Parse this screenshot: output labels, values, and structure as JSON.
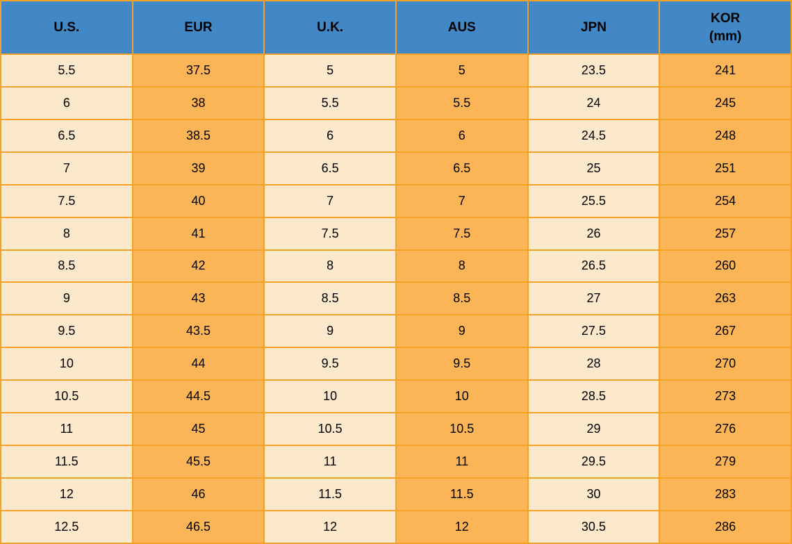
{
  "table": {
    "headers": [
      {
        "label": "U.S."
      },
      {
        "label": "EUR"
      },
      {
        "label": "U.K."
      },
      {
        "label": "AUS"
      },
      {
        "label": "JPN"
      },
      {
        "label": "KOR",
        "sublabel": "(mm)"
      }
    ]
  },
  "colors": {
    "header_bg": "#4288C6",
    "cell_cream": "#FCE8CA",
    "cell_orange": "#FBB557",
    "grid_border": "#F4A226",
    "text": "#000000"
  },
  "chart_data": {
    "type": "table",
    "columns": [
      "U.S.",
      "EUR",
      "U.K.",
      "AUS",
      "JPN",
      "KOR (mm)"
    ],
    "column_styles": [
      "cream",
      "orange",
      "cream",
      "orange",
      "cream",
      "orange"
    ],
    "rows": [
      [
        "5.5",
        "37.5",
        "5",
        "5",
        "23.5",
        "241"
      ],
      [
        "6",
        "38",
        "5.5",
        "5.5",
        "24",
        "245"
      ],
      [
        "6.5",
        "38.5",
        "6",
        "6",
        "24.5",
        "248"
      ],
      [
        "7",
        "39",
        "6.5",
        "6.5",
        "25",
        "251"
      ],
      [
        "7.5",
        "40",
        "7",
        "7",
        "25.5",
        "254"
      ],
      [
        "8",
        "41",
        "7.5",
        "7.5",
        "26",
        "257"
      ],
      [
        "8.5",
        "42",
        "8",
        "8",
        "26.5",
        "260"
      ],
      [
        "9",
        "43",
        "8.5",
        "8.5",
        "27",
        "263"
      ],
      [
        "9.5",
        "43.5",
        "9",
        "9",
        "27.5",
        "267"
      ],
      [
        "10",
        "44",
        "9.5",
        "9.5",
        "28",
        "270"
      ],
      [
        "10.5",
        "44.5",
        "10",
        "10",
        "28.5",
        "273"
      ],
      [
        "11",
        "45",
        "10.5",
        "10.5",
        "29",
        "276"
      ],
      [
        "11.5",
        "45.5",
        "11",
        "11",
        "29.5",
        "279"
      ],
      [
        "12",
        "46",
        "11.5",
        "11.5",
        "30",
        "283"
      ],
      [
        "12.5",
        "46.5",
        "12",
        "12",
        "30.5",
        "286"
      ]
    ]
  }
}
